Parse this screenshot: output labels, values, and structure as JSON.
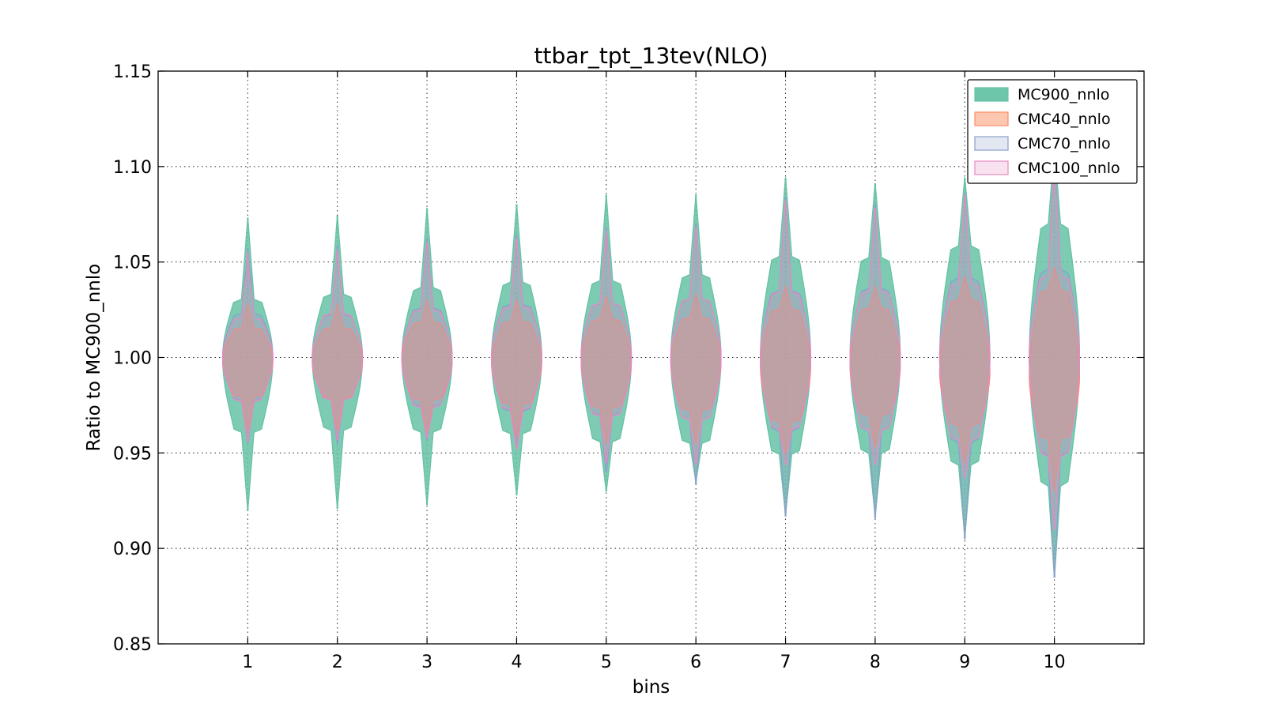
{
  "chart_data": {
    "type": "violin",
    "title": "ttbar_tpt_13tev(NLO)",
    "xlabel": "bins",
    "ylabel": "Ratio to MC900_nnlo",
    "categories": [
      "1",
      "2",
      "3",
      "4",
      "5",
      "6",
      "7",
      "8",
      "9",
      "10"
    ],
    "xlim": [
      0,
      11
    ],
    "ylim": [
      0.85,
      1.15
    ],
    "yticks": [
      "0.85",
      "0.90",
      "0.95",
      "1.00",
      "1.05",
      "1.10",
      "1.15"
    ],
    "grid": true,
    "legend_position": "top-right",
    "series": [
      {
        "name": "MC900_nnlo",
        "color": "#66c2a5",
        "min": [
          0.92,
          0.921,
          0.923,
          0.928,
          0.93,
          0.935,
          0.918,
          0.917,
          0.906,
          0.885
        ],
        "q_low": [
          0.962,
          0.963,
          0.962,
          0.961,
          0.957,
          0.956,
          0.95,
          0.95,
          0.945,
          0.935
        ],
        "median": [
          1.0,
          1.0,
          1.0,
          1.0,
          1.0,
          1.0,
          1.0,
          1.0,
          1.0,
          1.0
        ],
        "q_high": [
          1.03,
          1.032,
          1.035,
          1.038,
          1.04,
          1.042,
          1.052,
          1.052,
          1.058,
          1.068
        ],
        "max": [
          1.073,
          1.074,
          1.078,
          1.08,
          1.085,
          1.085,
          1.094,
          1.091,
          1.094,
          1.11
        ]
      },
      {
        "name": "CMC40_nnlo",
        "color": "#fc8d62",
        "min": [
          0.962,
          0.962,
          0.961,
          0.958,
          0.955,
          0.955,
          0.95,
          0.953,
          0.945,
          0.93
        ],
        "q_low": [
          0.98,
          0.979,
          0.978,
          0.976,
          0.974,
          0.973,
          0.967,
          0.97,
          0.965,
          0.958
        ],
        "median": [
          0.998,
          0.998,
          0.998,
          0.997,
          0.997,
          0.997,
          0.995,
          0.995,
          0.992,
          0.99
        ],
        "q_high": [
          1.015,
          1.015,
          1.018,
          1.018,
          1.02,
          1.02,
          1.025,
          1.025,
          1.03,
          1.035
        ],
        "max": [
          1.028,
          1.028,
          1.03,
          1.03,
          1.032,
          1.033,
          1.037,
          1.037,
          1.042,
          1.047
        ]
      },
      {
        "name": "CMC70_nnlo",
        "color": "#8da0cb",
        "min": [
          0.955,
          0.955,
          0.957,
          0.955,
          0.94,
          0.934,
          0.917,
          0.916,
          0.905,
          0.885
        ],
        "q_low": [
          0.978,
          0.978,
          0.975,
          0.973,
          0.97,
          0.968,
          0.963,
          0.962,
          0.957,
          0.95
        ],
        "median": [
          1.0,
          1.0,
          1.0,
          1.0,
          1.0,
          1.0,
          1.0,
          1.0,
          1.0,
          1.0
        ],
        "q_high": [
          1.022,
          1.022,
          1.025,
          1.027,
          1.028,
          1.03,
          1.035,
          1.035,
          1.04,
          1.045
        ],
        "max": [
          1.057,
          1.058,
          1.062,
          1.064,
          1.068,
          1.07,
          1.083,
          1.08,
          1.086,
          1.105
        ]
      },
      {
        "name": "CMC100_nnlo",
        "color": "#e78ac3",
        "min": [
          0.956,
          0.957,
          0.958,
          0.952,
          0.945,
          0.944,
          0.944,
          0.944,
          0.937,
          0.91
        ],
        "q_low": [
          0.978,
          0.978,
          0.975,
          0.973,
          0.97,
          0.968,
          0.963,
          0.962,
          0.957,
          0.95
        ],
        "median": [
          1.0,
          1.0,
          1.0,
          1.0,
          1.0,
          1.0,
          1.0,
          1.0,
          1.0,
          1.0
        ],
        "q_high": [
          1.02,
          1.022,
          1.024,
          1.026,
          1.028,
          1.03,
          1.033,
          1.034,
          1.038,
          1.043
        ],
        "max": [
          1.055,
          1.056,
          1.06,
          1.062,
          1.066,
          1.068,
          1.082,
          1.078,
          1.085,
          1.1
        ]
      }
    ]
  }
}
